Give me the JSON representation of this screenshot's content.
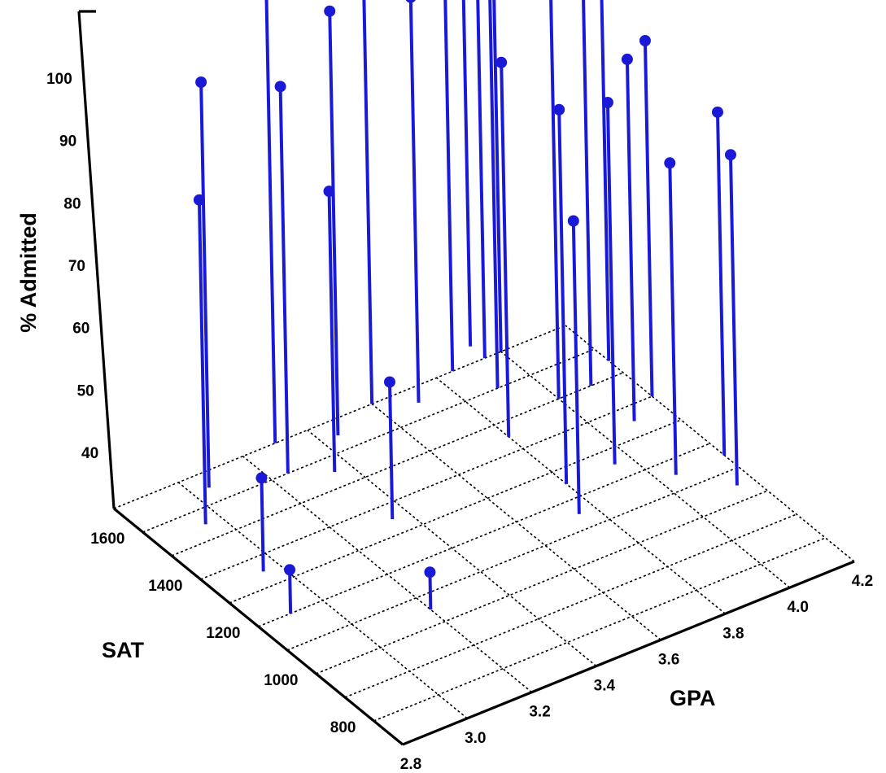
{
  "chart_data": {
    "type": "scatter",
    "subtype": "3d-stem",
    "title": "",
    "xlabel": "GPA",
    "ylabel": "SAT",
    "zlabel": "% Admitted",
    "xlim": [
      2.8,
      4.2
    ],
    "ylim": [
      700,
      1700
    ],
    "zlim": [
      30,
      110
    ],
    "x_ticks": [
      "2.8",
      "3.0",
      "3.2",
      "3.4",
      "3.6",
      "3.8",
      "4.0",
      "4.2"
    ],
    "y_ticks": [
      "800",
      "1000",
      "1200",
      "1400",
      "1600"
    ],
    "z_ticks": [
      "40",
      "50",
      "60",
      "70",
      "80",
      "90",
      "100"
    ],
    "grid": true,
    "series": [
      {
        "color": "#1a1ad6",
        "points": [
          {
            "x": 2.95,
            "y": 1550,
            "z": 82
          },
          {
            "x": 2.95,
            "y": 1350,
            "z": 45
          },
          {
            "x": 2.9,
            "y": 1200,
            "z": 37
          },
          {
            "x": 3.05,
            "y": 1650,
            "z": 95
          },
          {
            "x": 3.25,
            "y": 1600,
            "z": 92
          },
          {
            "x": 3.35,
            "y": 1550,
            "z": 75
          },
          {
            "x": 3.3,
            "y": 1700,
            "z": 105
          },
          {
            "x": 3.45,
            "y": 1650,
            "z": 98
          },
          {
            "x": 3.6,
            "y": 1700,
            "z": 105
          },
          {
            "x": 3.7,
            "y": 1650,
            "z": 95
          },
          {
            "x": 3.95,
            "y": 1700,
            "z": 103
          },
          {
            "x": 3.95,
            "y": 1750,
            "z": 103
          },
          {
            "x": 3.85,
            "y": 1700,
            "z": 99
          },
          {
            "x": 3.9,
            "y": 1600,
            "z": 100
          },
          {
            "x": 4.0,
            "y": 1700,
            "z": 104
          },
          {
            "x": 3.8,
            "y": 1450,
            "z": 90
          },
          {
            "x": 3.35,
            "y": 1350,
            "z": 52
          },
          {
            "x": 3.2,
            "y": 1050,
            "z": 36
          },
          {
            "x": 3.8,
            "y": 1250,
            "z": 90
          },
          {
            "x": 4.0,
            "y": 1500,
            "z": 98
          },
          {
            "x": 4.1,
            "y": 1500,
            "z": 99
          },
          {
            "x": 4.2,
            "y": 1550,
            "z": 94
          },
          {
            "x": 4.2,
            "y": 1400,
            "z": 87
          },
          {
            "x": 4.1,
            "y": 1350,
            "z": 88
          },
          {
            "x": 3.95,
            "y": 1250,
            "z": 88
          },
          {
            "x": 3.75,
            "y": 1150,
            "z": 77
          },
          {
            "x": 4.05,
            "y": 1150,
            "z": 80
          },
          {
            "x": 4.2,
            "y": 1150,
            "z": 85
          },
          {
            "x": 4.15,
            "y": 1050,
            "z": 83
          }
        ]
      }
    ]
  }
}
